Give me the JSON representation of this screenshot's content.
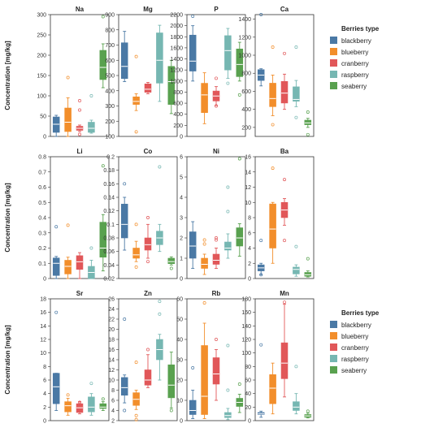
{
  "figure": {
    "ylabel": "Concentration [mg/kg]",
    "legend_title": "Berries type",
    "legend_items": [
      "blackberry",
      "blueberry",
      "cranberry",
      "raspberry",
      "seaberry"
    ],
    "colors": [
      "#4a79a5",
      "#f28e2b",
      "#e15759",
      "#76b7b2",
      "#59a14f"
    ]
  },
  "chart_data": [
    {
      "type": "box",
      "title": "Na",
      "ylim": [
        0,
        300
      ],
      "yticks": [
        0,
        50,
        100,
        150,
        200,
        250,
        300
      ],
      "boxes": [
        {
          "q1": 10,
          "median": 30,
          "q3": 48,
          "wlo": 0,
          "whi": 52,
          "outliers": []
        },
        {
          "q1": 12,
          "median": 35,
          "q3": 70,
          "wlo": 0,
          "whi": 95,
          "outliers": [
            145
          ]
        },
        {
          "q1": 15,
          "median": 20,
          "q3": 25,
          "wlo": 12,
          "whi": 28,
          "outliers": [
            5,
            65,
            88
          ]
        },
        {
          "q1": 10,
          "median": 20,
          "q3": 35,
          "wlo": 8,
          "whi": 40,
          "outliers": [
            100
          ]
        },
        {
          "q1": 140,
          "median": 170,
          "q3": 212,
          "wlo": 120,
          "whi": 228,
          "outliers": [
            295
          ]
        }
      ]
    },
    {
      "type": "box",
      "title": "Mg",
      "ylim": [
        100,
        900
      ],
      "yticks": [
        100,
        200,
        300,
        400,
        500,
        600,
        700,
        800,
        900
      ],
      "boxes": [
        {
          "q1": 480,
          "median": 560,
          "q3": 715,
          "wlo": 460,
          "whi": 790,
          "outliers": []
        },
        {
          "q1": 310,
          "median": 330,
          "q3": 360,
          "wlo": 270,
          "whi": 380,
          "outliers": [
            130,
            625
          ]
        },
        {
          "q1": 390,
          "median": 410,
          "q3": 445,
          "wlo": 380,
          "whi": 455,
          "outliers": []
        },
        {
          "q1": 450,
          "median": 600,
          "q3": 780,
          "wlo": 330,
          "whi": 830,
          "outliers": []
        },
        {
          "q1": 310,
          "median": 460,
          "q3": 560,
          "wlo": 250,
          "whi": 600,
          "outliers": []
        }
      ]
    },
    {
      "type": "box",
      "title": "P",
      "ylim": [
        0,
        2200
      ],
      "yticks": [
        0,
        200,
        400,
        600,
        800,
        1000,
        1200,
        1400,
        1600,
        1800,
        2000,
        2200
      ],
      "boxes": [
        {
          "q1": 1180,
          "median": 1360,
          "q3": 1830,
          "wlo": 1000,
          "whi": 2000,
          "outliers": [
            2170
          ]
        },
        {
          "q1": 430,
          "median": 750,
          "q3": 960,
          "wlo": 230,
          "whi": 1150,
          "outliers": []
        },
        {
          "q1": 640,
          "median": 730,
          "q3": 820,
          "wlo": 560,
          "whi": 900,
          "outliers": [
            550,
            1050
          ]
        },
        {
          "q1": 1200,
          "median": 1550,
          "q3": 1820,
          "wlo": 1050,
          "whi": 1950,
          "outliers": [
            960
          ]
        },
        {
          "q1": 1080,
          "median": 1300,
          "q3": 1580,
          "wlo": 1000,
          "whi": 1700,
          "outliers": [
            750
          ]
        }
      ]
    },
    {
      "type": "box",
      "title": "Ca",
      "ylim": [
        100,
        1450
      ],
      "yticks": [
        200,
        400,
        600,
        800,
        1000,
        1200,
        1400
      ],
      "boxes": [
        {
          "q1": 720,
          "median": 780,
          "q3": 840,
          "wlo": 660,
          "whi": 850,
          "outliers": [
            1450
          ]
        },
        {
          "q1": 430,
          "median": 520,
          "q3": 690,
          "wlo": 330,
          "whi": 780,
          "outliers": [
            1090,
            230
          ]
        },
        {
          "q1": 470,
          "median": 580,
          "q3": 710,
          "wlo": 400,
          "whi": 790,
          "outliers": [
            1020
          ]
        },
        {
          "q1": 490,
          "median": 510,
          "q3": 650,
          "wlo": 430,
          "whi": 720,
          "outliers": [
            1090,
            310
          ]
        },
        {
          "q1": 230,
          "median": 250,
          "q3": 280,
          "wlo": 200,
          "whi": 300,
          "outliers": [
            120,
            370
          ]
        }
      ]
    },
    {
      "type": "box",
      "title": "Li",
      "ylim": [
        0,
        0.8
      ],
      "yticks": [
        0,
        0.1,
        0.2,
        0.3,
        0.4,
        0.5,
        0.6,
        0.7,
        0.8
      ],
      "boxes": [
        {
          "q1": 0.02,
          "median": 0.1,
          "q3": 0.135,
          "wlo": 0.0,
          "whi": 0.145,
          "outliers": [
            0.34
          ]
        },
        {
          "q1": 0.03,
          "median": 0.08,
          "q3": 0.12,
          "wlo": 0.0,
          "whi": 0.14,
          "outliers": [
            0.35
          ]
        },
        {
          "q1": 0.06,
          "median": 0.11,
          "q3": 0.15,
          "wlo": 0.0,
          "whi": 0.17,
          "outliers": []
        },
        {
          "q1": 0.0,
          "median": 0.04,
          "q3": 0.08,
          "wlo": 0.0,
          "whi": 0.12,
          "outliers": [
            0.2
          ]
        },
        {
          "q1": 0.14,
          "median": 0.2,
          "q3": 0.37,
          "wlo": 0.05,
          "whi": 0.42,
          "outliers": [
            0.74
          ]
        }
      ]
    },
    {
      "type": "box",
      "title": "Co",
      "ylim": [
        0.02,
        0.2
      ],
      "yticks": [
        0.02,
        0.04,
        0.06,
        0.08,
        0.1,
        0.12,
        0.14,
        0.16,
        0.18,
        0.2
      ],
      "boxes": [
        {
          "q1": 0.08,
          "median": 0.1,
          "q3": 0.13,
          "wlo": 0.062,
          "whi": 0.14,
          "outliers": [
            0.16
          ]
        },
        {
          "q1": 0.05,
          "median": 0.055,
          "q3": 0.065,
          "wlo": 0.045,
          "whi": 0.075,
          "outliers": [
            0.1,
            0.037
          ]
        },
        {
          "q1": 0.062,
          "median": 0.07,
          "q3": 0.08,
          "wlo": 0.05,
          "whi": 0.1,
          "outliers": [
            0.11,
            0.045
          ]
        },
        {
          "q1": 0.07,
          "median": 0.08,
          "q3": 0.09,
          "wlo": 0.06,
          "whi": 0.1,
          "outliers": [
            0.185
          ]
        },
        {
          "q1": 0.042,
          "median": 0.045,
          "q3": 0.05,
          "wlo": 0.04,
          "whi": 0.052,
          "outliers": [
            0.035
          ]
        }
      ]
    },
    {
      "type": "box",
      "title": "Ni",
      "ylim": [
        0,
        6
      ],
      "yticks": [
        0,
        1,
        2,
        3,
        4,
        5,
        6
      ],
      "boxes": [
        {
          "q1": 1.0,
          "median": 1.6,
          "q3": 2.3,
          "wlo": 0.5,
          "whi": 2.8,
          "outliers": []
        },
        {
          "q1": 0.5,
          "median": 0.7,
          "q3": 1.0,
          "wlo": 0.2,
          "whi": 1.2,
          "outliers": [
            1.7,
            1.9
          ]
        },
        {
          "q1": 0.7,
          "median": 0.9,
          "q3": 1.2,
          "wlo": 0.5,
          "whi": 1.5,
          "outliers": [
            2.0,
            1.9
          ]
        },
        {
          "q1": 1.4,
          "median": 1.5,
          "q3": 1.8,
          "wlo": 1.0,
          "whi": 2.2,
          "outliers": [
            3.3,
            4.5
          ]
        },
        {
          "q1": 1.6,
          "median": 2.0,
          "q3": 2.5,
          "wlo": 1.1,
          "whi": 2.7,
          "outliers": [
            5.9
          ]
        }
      ]
    },
    {
      "type": "box",
      "title": "Ba",
      "ylim": [
        0,
        16
      ],
      "yticks": [
        0,
        2,
        4,
        6,
        8,
        10,
        12,
        14,
        16
      ],
      "boxes": [
        {
          "q1": 1.0,
          "median": 1.4,
          "q3": 1.8,
          "wlo": 0.5,
          "whi": 2.0,
          "outliers": [
            5.0,
            0.5
          ]
        },
        {
          "q1": 4.0,
          "median": 6.5,
          "q3": 9.8,
          "wlo": 2.0,
          "whi": 10.0,
          "outliers": [
            14.5
          ]
        },
        {
          "q1": 8.0,
          "median": 9.0,
          "q3": 10.0,
          "wlo": 7.0,
          "whi": 10.5,
          "outliers": [
            13.0,
            5.0
          ]
        },
        {
          "q1": 0.6,
          "median": 1.2,
          "q3": 1.5,
          "wlo": 0.3,
          "whi": 1.8,
          "outliers": [
            4.2
          ]
        },
        {
          "q1": 0.3,
          "median": 0.5,
          "q3": 0.8,
          "wlo": 0.2,
          "whi": 1.0,
          "outliers": [
            2.6
          ]
        }
      ]
    },
    {
      "type": "box",
      "title": "Sr",
      "ylim": [
        0,
        18
      ],
      "yticks": [
        0,
        2,
        4,
        6,
        8,
        10,
        12,
        14,
        16,
        18
      ],
      "boxes": [
        {
          "q1": 2.5,
          "median": 5.0,
          "q3": 7.0,
          "wlo": 1.5,
          "whi": 7.0,
          "outliers": [
            16.0
          ]
        },
        {
          "q1": 1.3,
          "median": 2.2,
          "q3": 2.8,
          "wlo": 0.8,
          "whi": 3.3,
          "outliers": [
            3.8
          ]
        },
        {
          "q1": 1.2,
          "median": 1.9,
          "q3": 2.5,
          "wlo": 1.0,
          "whi": 2.8,
          "outliers": [
            2.7
          ]
        },
        {
          "q1": 1.3,
          "median": 2.0,
          "q3": 3.5,
          "wlo": 0.8,
          "whi": 4.0,
          "outliers": [
            5.5
          ]
        },
        {
          "q1": 1.8,
          "median": 2.0,
          "q3": 2.5,
          "wlo": 1.5,
          "whi": 2.8,
          "outliers": [
            3.2
          ]
        }
      ]
    },
    {
      "type": "box",
      "title": "Zn",
      "ylim": [
        2,
        26
      ],
      "yticks": [
        2,
        4,
        6,
        8,
        10,
        12,
        14,
        16,
        18,
        20,
        22,
        24,
        26
      ],
      "boxes": [
        {
          "q1": 7.0,
          "median": 8.5,
          "q3": 10.5,
          "wlo": 5.5,
          "whi": 11.0,
          "outliers": [
            22.0,
            4.0
          ]
        },
        {
          "q1": 5.0,
          "median": 6.2,
          "q3": 7.5,
          "wlo": 4.2,
          "whi": 8.0,
          "outliers": [
            13.5,
            3.0,
            2.2
          ]
        },
        {
          "q1": 9.0,
          "median": 10.0,
          "q3": 12.0,
          "wlo": 8.5,
          "whi": 15.0,
          "outliers": [
            16.0
          ]
        },
        {
          "q1": 14.0,
          "median": 16.0,
          "q3": 18.0,
          "wlo": 10.0,
          "whi": 19.0,
          "outliers": [
            25.5,
            23.0
          ]
        },
        {
          "q1": 6.5,
          "median": 9.0,
          "q3": 13.0,
          "wlo": 4.5,
          "whi": 15.5,
          "outliers": [
            4.0
          ]
        }
      ]
    },
    {
      "type": "box",
      "title": "Rb",
      "ylim": [
        0,
        60
      ],
      "yticks": [
        0,
        10,
        20,
        30,
        40,
        50,
        60
      ],
      "boxes": [
        {
          "q1": 3.0,
          "median": 5.0,
          "q3": 10.0,
          "wlo": 1.0,
          "whi": 15.0,
          "outliers": [
            26.0
          ]
        },
        {
          "q1": 3.0,
          "median": 12.0,
          "q3": 37.0,
          "wlo": 1.0,
          "whi": 48.0,
          "outliers": [
            58.0
          ]
        },
        {
          "q1": 18.0,
          "median": 23.0,
          "q3": 31.0,
          "wlo": 10.0,
          "whi": 35.0,
          "outliers": [
            40.0
          ]
        },
        {
          "q1": 1.5,
          "median": 2.5,
          "q3": 4.0,
          "wlo": 0.5,
          "whi": 6.0,
          "outliers": [
            15.0,
            37.0
          ]
        },
        {
          "q1": 7.0,
          "median": 9.0,
          "q3": 11.0,
          "wlo": 4.0,
          "whi": 13.0,
          "outliers": [
            18.0
          ]
        }
      ]
    },
    {
      "type": "box",
      "title": "Mn",
      "ylim": [
        0,
        180
      ],
      "yticks": [
        0,
        20,
        40,
        60,
        80,
        100,
        120,
        140,
        160,
        180
      ],
      "boxes": [
        {
          "q1": 9.0,
          "median": 10.0,
          "q3": 12.0,
          "wlo": 5.0,
          "whi": 14.0,
          "outliers": [
            112.0
          ]
        },
        {
          "q1": 25.0,
          "median": 48.0,
          "q3": 68.0,
          "wlo": 10.0,
          "whi": 85.0,
          "outliers": []
        },
        {
          "q1": 62.0,
          "median": 85.0,
          "q3": 115.0,
          "wlo": 35.0,
          "whi": 172.0,
          "outliers": [
            175.0
          ]
        },
        {
          "q1": 15.0,
          "median": 20.0,
          "q3": 28.0,
          "wlo": 10.0,
          "whi": 40.0,
          "outliers": [
            80.0
          ]
        },
        {
          "q1": 5.0,
          "median": 7.0,
          "q3": 9.0,
          "wlo": 4.0,
          "whi": 11.0,
          "outliers": [
            14.0
          ]
        }
      ]
    }
  ]
}
